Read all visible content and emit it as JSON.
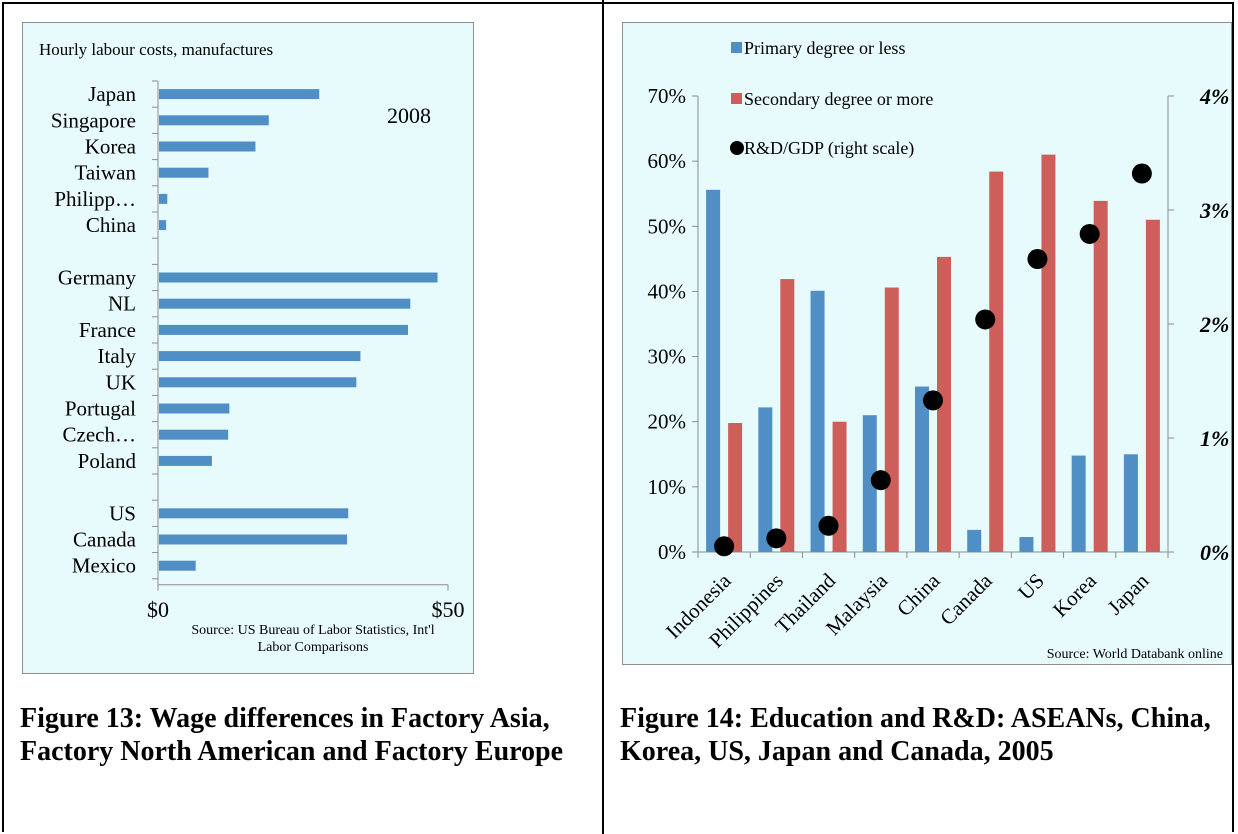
{
  "captions": {
    "left": "Figure 13: Wage differences in Factory Asia, Factory North American and Factory Europe",
    "right": "Figure 14: Education and R&D: ASEANs, China, Korea, US, Japan and Canada, 2005"
  },
  "chart_data": [
    {
      "type": "bar",
      "orientation": "horizontal",
      "title": "Hourly labour costs, manufactures",
      "annotation": "2008",
      "source": "Source: US Bureau of Labor Statistics, Int'l Labor Comparisons",
      "xlim": [
        0,
        50
      ],
      "xticks": [
        "$0",
        "$50"
      ],
      "grid": false,
      "color": "#4f8fc6",
      "categories": [
        "Japan",
        "Singapore",
        "Korea",
        "Taiwan",
        "Philipp…",
        "China",
        "",
        "Germany",
        "NL",
        "France",
        "Italy",
        "UK",
        "Portugal",
        "Czech…",
        "Poland",
        "",
        "US",
        "Canada",
        "Mexico"
      ],
      "values": [
        27.8,
        19.1,
        16.8,
        8.7,
        1.6,
        1.4,
        null,
        48.2,
        43.5,
        43.1,
        34.9,
        34.2,
        12.3,
        12.1,
        9.3,
        null,
        32.8,
        32.6,
        6.5
      ]
    },
    {
      "type": "bar",
      "title": "",
      "source": "Source: World Databank online",
      "categories": [
        "Indonesia",
        "Philippines",
        "Thailand",
        "Malaysia",
        "China",
        "Canada",
        "US",
        "Korea",
        "Japan"
      ],
      "ylim": [
        0,
        70
      ],
      "yticks": [
        "0%",
        "10%",
        "20%",
        "30%",
        "40%",
        "50%",
        "60%",
        "70%"
      ],
      "y2lim": [
        0,
        4
      ],
      "y2ticks": [
        "0%",
        "1%",
        "2%",
        "3%",
        "4%"
      ],
      "grid": false,
      "legend_position": "top-left",
      "series": [
        {
          "name": "Primary degree or less",
          "type": "bar",
          "axis": "left",
          "color": "#4f8fc6",
          "values": [
            55.6,
            22.2,
            40.1,
            21.0,
            25.4,
            3.4,
            2.3,
            14.8,
            15.0
          ]
        },
        {
          "name": "Secondary degree or more",
          "type": "bar",
          "axis": "left",
          "color": "#cd5e5a",
          "values": [
            19.8,
            41.9,
            20.0,
            40.6,
            45.3,
            58.4,
            61.0,
            53.9,
            51.0
          ]
        },
        {
          "name": "R&D/GDP (right scale)",
          "type": "scatter",
          "axis": "right",
          "color": "#000000",
          "values": [
            0.05,
            0.12,
            0.23,
            0.63,
            1.33,
            2.04,
            2.57,
            2.79,
            3.32
          ]
        }
      ]
    }
  ]
}
